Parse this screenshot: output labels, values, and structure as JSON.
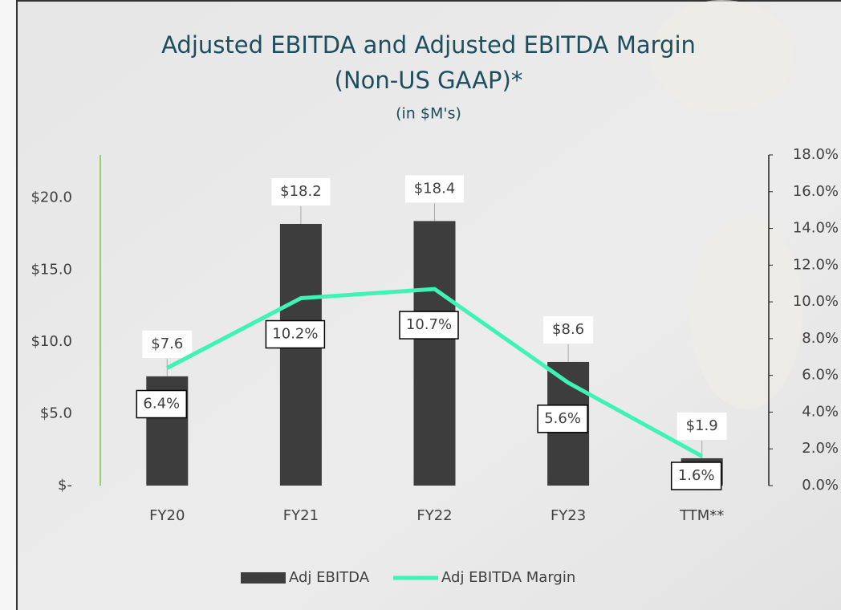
{
  "chart_data": {
    "type": "bar-line",
    "title": "Adjusted EBITDA and Adjusted EBITDA Margin",
    "subtitle": "(Non-US GAAP)*",
    "unit_note": "(in $M's)",
    "categories": [
      "FY20",
      "FY21",
      "FY22",
      "FY23",
      "TTM**"
    ],
    "series": [
      {
        "name": "Adj EBITDA",
        "type": "bar",
        "color": "#3d3d3d",
        "values": [
          7.6,
          18.2,
          18.4,
          8.6,
          1.9
        ],
        "value_labels": [
          "$7.6",
          "$18.2",
          "$18.4",
          "$8.6",
          "$1.9"
        ]
      },
      {
        "name": "Adj EBITDA Margin",
        "type": "line",
        "axis": "y2",
        "color": "#3ff2b6",
        "values": [
          6.4,
          10.2,
          10.7,
          5.6,
          1.6
        ],
        "value_labels": [
          "6.4%",
          "10.2%",
          "10.7%",
          "5.6%",
          "1.6%"
        ]
      }
    ],
    "ylim": [
      0,
      23
    ],
    "yticks": [
      {
        "value": 0,
        "label": "$-"
      },
      {
        "value": 5,
        "label": "$5.0"
      },
      {
        "value": 10,
        "label": "$10.0"
      },
      {
        "value": 15,
        "label": "$15.0"
      },
      {
        "value": 20,
        "label": "$20.0"
      }
    ],
    "y2lim": [
      0,
      18
    ],
    "y2ticks": [
      {
        "value": 0,
        "label": "0.0%"
      },
      {
        "value": 2,
        "label": "2.0%"
      },
      {
        "value": 4,
        "label": "4.0%"
      },
      {
        "value": 6,
        "label": "6.0%"
      },
      {
        "value": 8,
        "label": "8.0%"
      },
      {
        "value": 10,
        "label": "10.0%"
      },
      {
        "value": 12,
        "label": "12.0%"
      },
      {
        "value": 14,
        "label": "14.0%"
      },
      {
        "value": 16,
        "label": "16.0%"
      },
      {
        "value": 18,
        "label": "18.0%"
      }
    ]
  }
}
